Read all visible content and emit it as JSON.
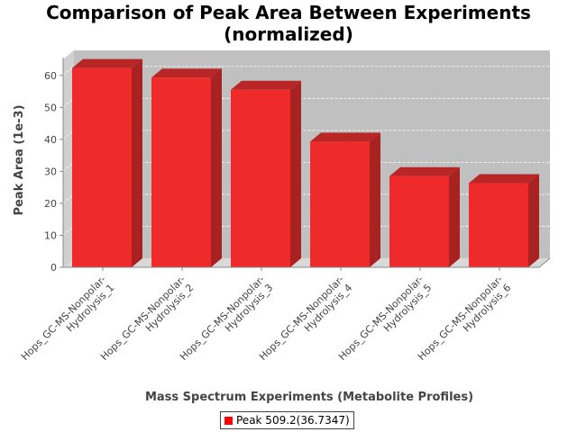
{
  "chart_data": {
    "type": "bar",
    "title": "Comparison of Peak Area Between Experiments",
    "subtitle": "(normalized)",
    "xlabel": "Mass Spectrum Experiments (Metabolite Profiles)",
    "ylabel": "Peak Area (1e-3)",
    "categories": [
      "Hops_GC-MS-Nonpolar-Hydrolysis_1",
      "Hops_GC-MS-Nonpolar-Hydrolysis_2",
      "Hops_GC-MS-Nonpolar-Hydrolysis_3",
      "Hops_GC-MS-Nonpolar-Hydrolysis_4",
      "Hops_GC-MS-Nonpolar-Hydrolysis_5",
      "Hops_GC-MS-Nonpolar-Hydrolysis_6"
    ],
    "category_lines": [
      [
        "Hops_GC-MS-Nonpolar-",
        "Hydrolysis_1"
      ],
      [
        "Hops_GC-MS-Nonpolar-",
        "Hydrolysis_2"
      ],
      [
        "Hops_GC-MS-Nonpolar-",
        "Hydrolysis_3"
      ],
      [
        "Hops_GC-MS-Nonpolar-",
        "Hydrolysis_4"
      ],
      [
        "Hops_GC-MS-Nonpolar-",
        "Hydrolysis_5"
      ],
      [
        "Hops_GC-MS-Nonpolar-",
        "Hydrolysis_6"
      ]
    ],
    "series": [
      {
        "name": "Peak 509.2(36.7347)",
        "values": [
          62.3,
          59.3,
          55.5,
          39.3,
          28.5,
          26.3
        ]
      }
    ],
    "ylim": [
      0,
      65
    ],
    "yticks": [
      0,
      10,
      20,
      30,
      40,
      50,
      60
    ],
    "grid": true,
    "legend_position": "bottom",
    "colors": {
      "bar_front": "#ee2a2a",
      "bar_top": "#b82626",
      "bar_side": "#a82222",
      "plot_background": "#c0c0c0",
      "legend_swatch": "#ff0000"
    }
  }
}
